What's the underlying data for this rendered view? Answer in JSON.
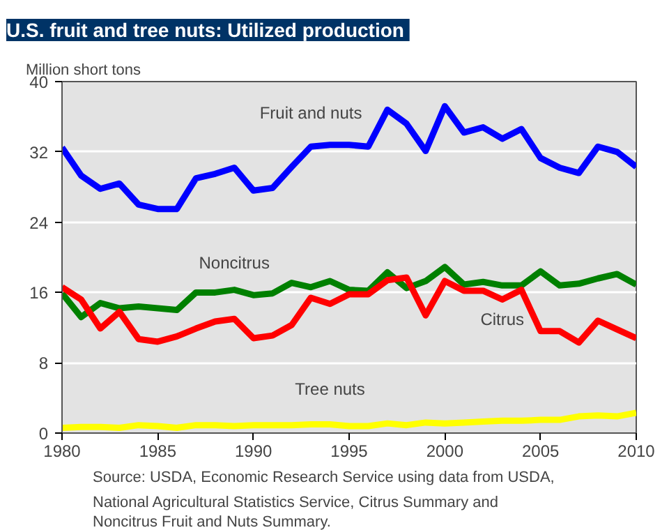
{
  "chart_data": {
    "type": "line",
    "title": "U.S. fruit and tree nuts:  Utilized production",
    "ylabel": "Million short tons",
    "x": [
      1980,
      1981,
      1982,
      1983,
      1984,
      1985,
      1986,
      1987,
      1988,
      1989,
      1990,
      1991,
      1992,
      1993,
      1994,
      1995,
      1996,
      1997,
      1998,
      1999,
      2000,
      2001,
      2002,
      2003,
      2004,
      2005,
      2006,
      2007,
      2008,
      2009,
      2010
    ],
    "series": [
      {
        "name": "Fruit and nuts",
        "color": "#0000ff",
        "values": [
          32.5,
          29.3,
          27.8,
          28.4,
          26.0,
          25.5,
          25.5,
          29.0,
          29.5,
          30.2,
          27.6,
          27.9,
          30.3,
          32.6,
          32.8,
          32.8,
          32.6,
          36.8,
          35.2,
          32.1,
          37.2,
          34.2,
          34.8,
          33.5,
          34.6,
          31.3,
          30.2,
          29.6,
          32.6,
          32.0,
          30.3
        ]
      },
      {
        "name": "Noncitrus",
        "color": "#008000",
        "values": [
          15.9,
          13.2,
          14.8,
          14.2,
          14.4,
          14.2,
          14.0,
          16.0,
          16.0,
          16.3,
          15.7,
          15.9,
          17.1,
          16.6,
          17.3,
          16.3,
          16.2,
          18.3,
          16.5,
          17.3,
          18.9,
          16.9,
          17.2,
          16.8,
          16.8,
          18.4,
          16.8,
          17.0,
          17.6,
          18.1,
          16.9
        ]
      },
      {
        "name": "Citrus",
        "color": "#ff0000",
        "values": [
          16.6,
          15.2,
          11.9,
          13.8,
          10.7,
          10.4,
          11.0,
          11.9,
          12.7,
          13.0,
          10.8,
          11.1,
          12.3,
          15.4,
          14.7,
          15.8,
          15.8,
          17.4,
          17.7,
          13.4,
          17.3,
          16.2,
          16.2,
          15.2,
          16.3,
          11.6,
          11.6,
          10.3,
          12.8,
          11.8,
          10.8
        ]
      },
      {
        "name": "Tree nuts",
        "color": "#ffff00",
        "values": [
          0.6,
          0.7,
          0.7,
          0.6,
          0.9,
          0.8,
          0.6,
          0.9,
          0.9,
          0.8,
          0.9,
          0.9,
          0.9,
          1.0,
          1.0,
          0.8,
          0.8,
          1.1,
          0.9,
          1.2,
          1.1,
          1.2,
          1.3,
          1.4,
          1.4,
          1.5,
          1.5,
          1.9,
          2.0,
          1.9,
          2.3
        ]
      }
    ],
    "xlim": [
      1980,
      2010
    ],
    "xticks": [
      1980,
      1985,
      1990,
      1995,
      2000,
      2005,
      2010
    ],
    "ylim": [
      0,
      40
    ],
    "yticks": [
      0,
      8,
      16,
      24,
      32,
      40
    ],
    "grid": "y",
    "marker": "none",
    "line_style": "solid",
    "annotations": [
      "Source: USDA, Economic Research Service using data from USDA, National Agricultural Statistics Service, Citrus Summary and Noncitrus Fruit and Nuts Summary."
    ]
  }
}
